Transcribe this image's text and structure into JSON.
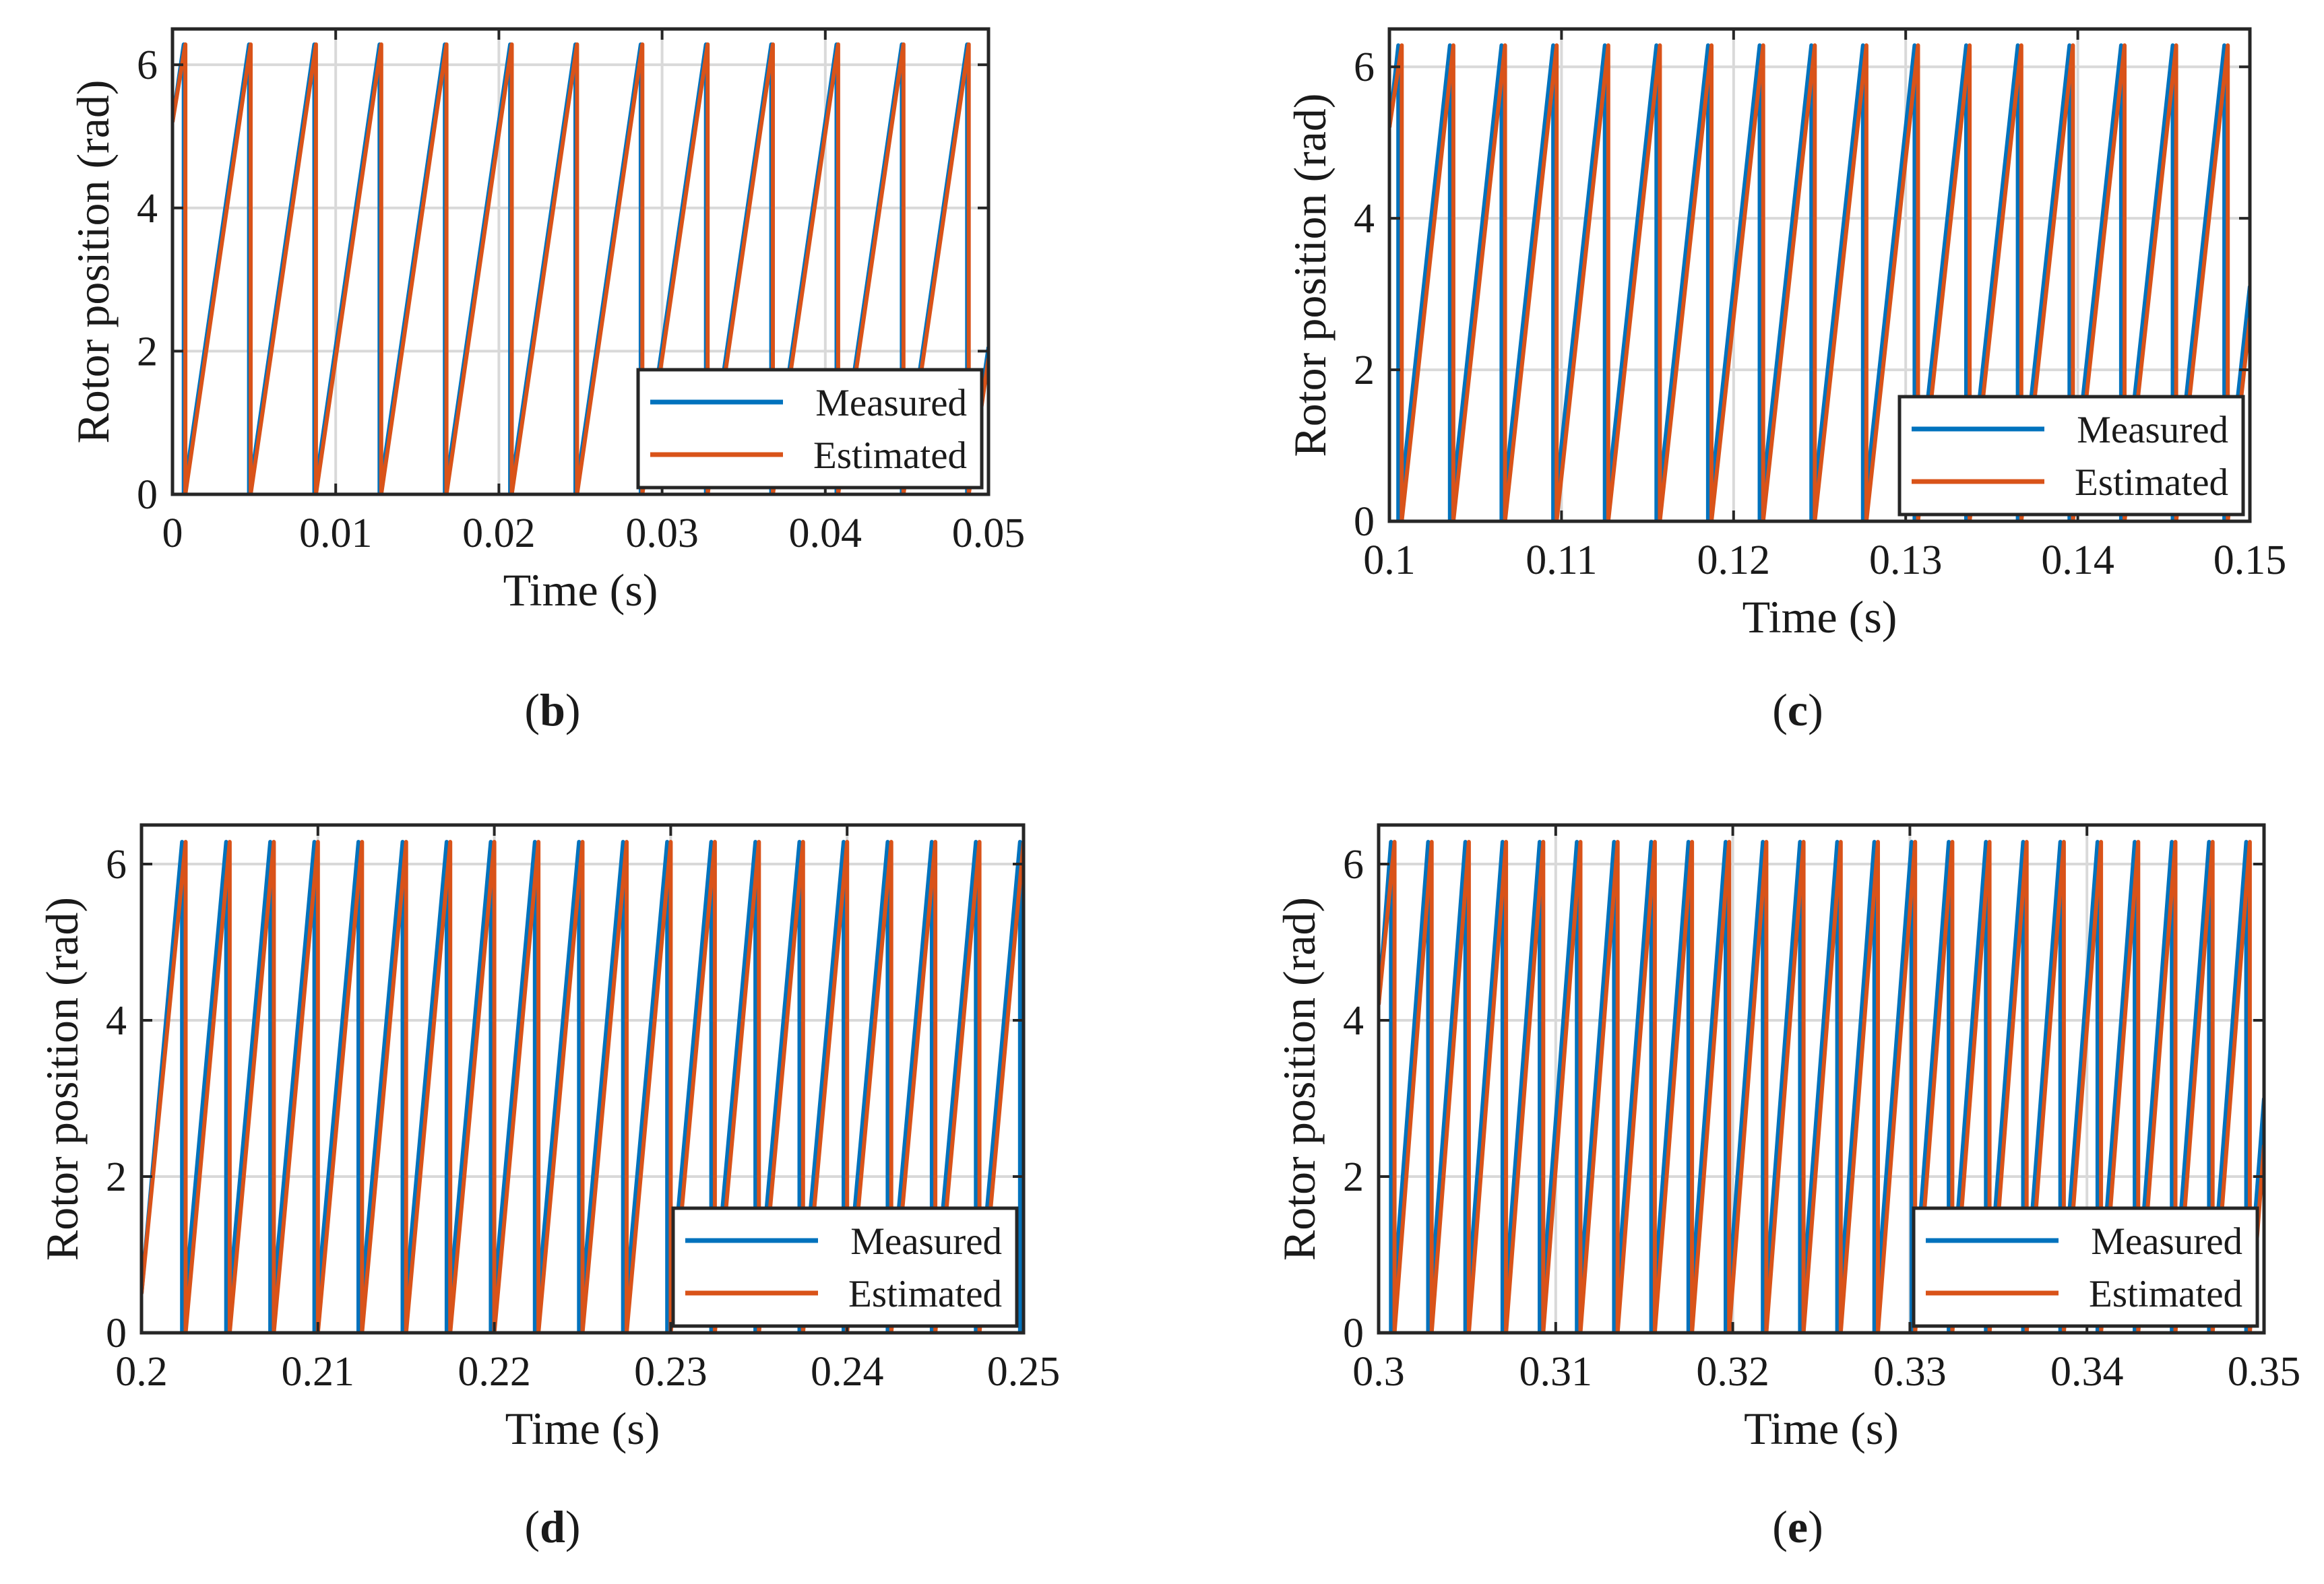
{
  "colors": {
    "measured": "#0072BD",
    "estimated": "#D95319",
    "grid": "#d9d9d9",
    "axis": "#262626"
  },
  "chart_data": [
    {
      "type": "line",
      "caption": "(b)",
      "caption_letter": "b",
      "xlabel": "Time (s)",
      "ylabel": "Rotor position (rad)",
      "xlim": [
        0,
        0.05
      ],
      "ylim": [
        0,
        6.5
      ],
      "xticks": [
        0,
        0.01,
        0.02,
        0.03,
        0.04,
        0.05
      ],
      "xticklabels": [
        "0",
        "0.01",
        "0.02",
        "0.03",
        "0.04",
        "0.05"
      ],
      "yticks": [
        0,
        2,
        4,
        6
      ],
      "yticklabels": [
        "0",
        "2",
        "4",
        "6"
      ],
      "grid": true,
      "legend": "bottom-right",
      "series": [
        {
          "name": "Measured",
          "waveform": "sawtooth",
          "y_min": 0,
          "y_max": 6.2832,
          "y_start": 5.2,
          "period": 0.004,
          "lag": 0,
          "x_range": [
            0,
            0.05
          ]
        },
        {
          "name": "Estimated",
          "waveform": "sawtooth",
          "y_min": 0,
          "y_max": 6.2832,
          "y_start": 5.2,
          "period": 0.004,
          "lag": 0.0001,
          "x_range": [
            0,
            0.05
          ]
        }
      ]
    },
    {
      "type": "line",
      "caption": "(c)",
      "caption_letter": "c",
      "xlabel": "Time (s)",
      "ylabel": "Rotor position (rad)",
      "xlim": [
        0.1,
        0.15
      ],
      "ylim": [
        0,
        6.5
      ],
      "xticks": [
        0.1,
        0.11,
        0.12,
        0.13,
        0.14,
        0.15
      ],
      "xticklabels": [
        "0.1",
        "0.11",
        "0.12",
        "0.13",
        "0.14",
        "0.15"
      ],
      "yticks": [
        0,
        2,
        4,
        6
      ],
      "yticklabels": [
        "0",
        "2",
        "4",
        "6"
      ],
      "grid": true,
      "legend": "bottom-right",
      "series": [
        {
          "name": "Measured",
          "waveform": "sawtooth",
          "y_min": 0,
          "y_max": 6.2832,
          "y_start": 5.2,
          "period": 0.003,
          "lag": 0,
          "x_range": [
            0.1,
            0.15
          ]
        },
        {
          "name": "Estimated",
          "waveform": "sawtooth",
          "y_min": 0,
          "y_max": 6.2832,
          "y_start": 5.2,
          "period": 0.003,
          "lag": 0.0002,
          "x_range": [
            0.1,
            0.15
          ]
        }
      ]
    },
    {
      "type": "line",
      "caption": "(d)",
      "caption_letter": "d",
      "xlabel": "Time (s)",
      "ylabel": "Rotor position (rad)",
      "xlim": [
        0.2,
        0.25
      ],
      "ylim": [
        0,
        6.5
      ],
      "xticks": [
        0.2,
        0.21,
        0.22,
        0.23,
        0.24,
        0.25
      ],
      "xticklabels": [
        "0.2",
        "0.21",
        "0.22",
        "0.23",
        "0.24",
        "0.25"
      ],
      "yticks": [
        0,
        2,
        4,
        6
      ],
      "yticklabels": [
        "0",
        "2",
        "4",
        "6"
      ],
      "grid": true,
      "legend": "bottom-right",
      "series": [
        {
          "name": "Measured",
          "waveform": "sawtooth",
          "y_min": 0,
          "y_max": 6.2832,
          "y_start": 0.5,
          "period": 0.0025,
          "lag": 0,
          "x_range": [
            0.2,
            0.25
          ]
        },
        {
          "name": "Estimated",
          "waveform": "sawtooth",
          "y_min": 0,
          "y_max": 6.2832,
          "y_start": 0.5,
          "period": 0.0025,
          "lag": 0.0002,
          "x_range": [
            0.2,
            0.25
          ]
        }
      ]
    },
    {
      "type": "line",
      "caption": "(e)",
      "caption_letter": "e",
      "xlabel": "Time (s)",
      "ylabel": "Rotor position (rad)",
      "xlim": [
        0.3,
        0.35
      ],
      "ylim": [
        0,
        6.5
      ],
      "xticks": [
        0.3,
        0.31,
        0.32,
        0.33,
        0.34,
        0.35
      ],
      "xticklabels": [
        "0.3",
        "0.31",
        "0.32",
        "0.33",
        "0.34",
        "0.35"
      ],
      "yticks": [
        0,
        2,
        4,
        6
      ],
      "yticklabels": [
        "0",
        "2",
        "4",
        "6"
      ],
      "grid": true,
      "legend": "bottom-right",
      "series": [
        {
          "name": "Measured",
          "waveform": "sawtooth",
          "y_min": 0,
          "y_max": 6.2832,
          "y_start": 4.2,
          "period": 0.0021,
          "lag": 0,
          "x_range": [
            0.3,
            0.35
          ]
        },
        {
          "name": "Estimated",
          "waveform": "sawtooth",
          "y_min": 0,
          "y_max": 6.2832,
          "y_start": 4.2,
          "period": 0.0021,
          "lag": 0.0002,
          "x_range": [
            0.3,
            0.35
          ]
        }
      ]
    }
  ]
}
